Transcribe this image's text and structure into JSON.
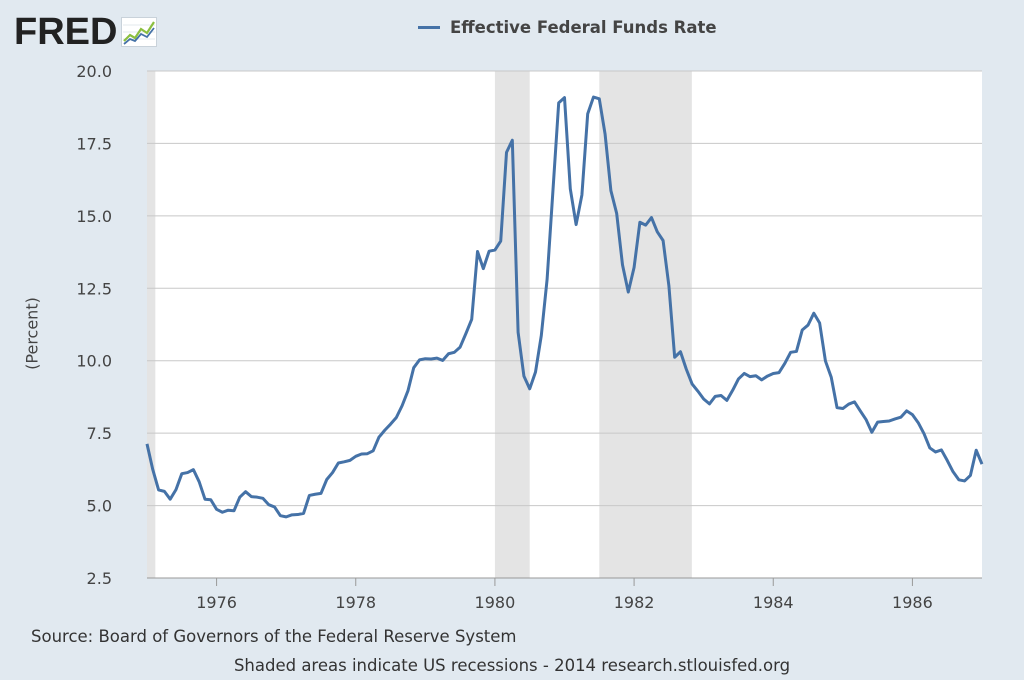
{
  "header": {
    "logo_text": "FRED",
    "logo_icon": "line-chart-icon"
  },
  "colors": {
    "series": "#4572a7",
    "recession": "#e4e4e4",
    "grid": "#c8c8c8",
    "background": "#e1e9f0"
  },
  "footer": {
    "source": "Source: Board of Governors of the Federal Reserve System",
    "note": "Shaded areas indicate US recessions - 2014 research.stlouisfed.org"
  },
  "chart_data": {
    "type": "line",
    "title": "",
    "xlabel": "",
    "ylabel": "(Percent)",
    "xlim": [
      1975.0,
      1987.0
    ],
    "ylim": [
      2.5,
      20.0
    ],
    "grid": true,
    "legend_position": "top",
    "x_ticks": [
      1976,
      1978,
      1980,
      1982,
      1984,
      1986
    ],
    "y_ticks": [
      2.5,
      5.0,
      7.5,
      10.0,
      12.5,
      15.0,
      17.5,
      20.0
    ],
    "y_tick_labels": [
      "2.5",
      "5.0",
      "7.5",
      "10.0",
      "12.5",
      "15.0",
      "17.5",
      "20.0"
    ],
    "recessions": [
      [
        1975.0,
        1975.12
      ],
      [
        1980.0,
        1980.5
      ],
      [
        1981.5,
        1982.83
      ]
    ],
    "series": [
      {
        "name": "Effective Federal Funds Rate",
        "start_year": 1975.0,
        "frequency": "monthly",
        "values": [
          7.13,
          6.24,
          5.54,
          5.49,
          5.22,
          5.55,
          6.1,
          6.14,
          6.24,
          5.82,
          5.22,
          5.2,
          4.87,
          4.77,
          4.84,
          4.82,
          5.29,
          5.48,
          5.31,
          5.29,
          5.25,
          5.03,
          4.95,
          4.65,
          4.61,
          4.68,
          4.69,
          4.73,
          5.35,
          5.39,
          5.42,
          5.9,
          6.14,
          6.47,
          6.51,
          6.56,
          6.7,
          6.78,
          6.79,
          6.89,
          7.36,
          7.6,
          7.81,
          8.04,
          8.45,
          8.96,
          9.76,
          10.03,
          10.07,
          10.06,
          10.09,
          10.01,
          10.24,
          10.29,
          10.47,
          10.94,
          11.43,
          13.77,
          13.18,
          13.78,
          13.82,
          14.13,
          17.19,
          17.61,
          10.98,
          9.47,
          9.03,
          9.61,
          10.87,
          12.81,
          15.85,
          18.9,
          19.08,
          15.93,
          14.7,
          15.72,
          18.52,
          19.1,
          19.04,
          17.82,
          15.87,
          15.08,
          13.31,
          12.37,
          13.22,
          14.78,
          14.68,
          14.94,
          14.45,
          14.15,
          12.59,
          10.12,
          10.31,
          9.71,
          9.2,
          8.95,
          8.68,
          8.51,
          8.77,
          8.8,
          8.63,
          8.98,
          9.37,
          9.56,
          9.45,
          9.48,
          9.34,
          9.47,
          9.56,
          9.59,
          9.91,
          10.29,
          10.32,
          11.06,
          11.23,
          11.64,
          11.3,
          9.99,
          9.43,
          8.38,
          8.35,
          8.5,
          8.58,
          8.27,
          7.97,
          7.53,
          7.88,
          7.9,
          7.92,
          7.99,
          8.05,
          8.27,
          8.14,
          7.86,
          7.48,
          6.99,
          6.85,
          6.92,
          6.56,
          6.17,
          5.89,
          5.85,
          6.04,
          6.91,
          6.43
        ]
      }
    ]
  }
}
